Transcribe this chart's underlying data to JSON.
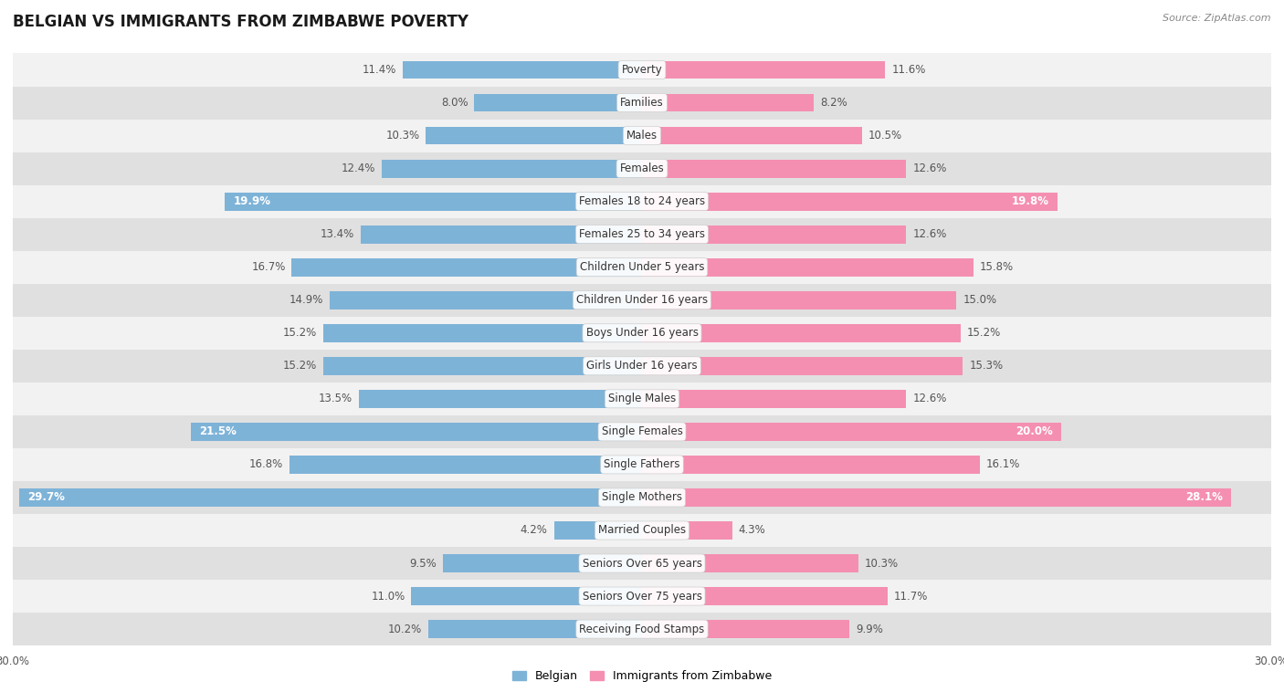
{
  "title": "BELGIAN VS IMMIGRANTS FROM ZIMBABWE POVERTY",
  "source": "Source: ZipAtlas.com",
  "categories": [
    "Poverty",
    "Families",
    "Males",
    "Females",
    "Females 18 to 24 years",
    "Females 25 to 34 years",
    "Children Under 5 years",
    "Children Under 16 years",
    "Boys Under 16 years",
    "Girls Under 16 years",
    "Single Males",
    "Single Females",
    "Single Fathers",
    "Single Mothers",
    "Married Couples",
    "Seniors Over 65 years",
    "Seniors Over 75 years",
    "Receiving Food Stamps"
  ],
  "belgian": [
    11.4,
    8.0,
    10.3,
    12.4,
    19.9,
    13.4,
    16.7,
    14.9,
    15.2,
    15.2,
    13.5,
    21.5,
    16.8,
    29.7,
    4.2,
    9.5,
    11.0,
    10.2
  ],
  "zimbabwe": [
    11.6,
    8.2,
    10.5,
    12.6,
    19.8,
    12.6,
    15.8,
    15.0,
    15.2,
    15.3,
    12.6,
    20.0,
    16.1,
    28.1,
    4.3,
    10.3,
    11.7,
    9.9
  ],
  "belgian_color": "#7EB3D8",
  "zimbabwe_color": "#F48FB1",
  "highlight_indices": [
    4,
    11,
    13
  ],
  "bar_height": 0.55,
  "xlim": 30.0,
  "row_bg_light": "#f2f2f2",
  "row_bg_dark": "#e0e0e0",
  "label_fontsize": 8.5,
  "title_fontsize": 12,
  "source_fontsize": 8,
  "axis_tick_fontsize": 8.5,
  "value_fontsize": 8.5
}
